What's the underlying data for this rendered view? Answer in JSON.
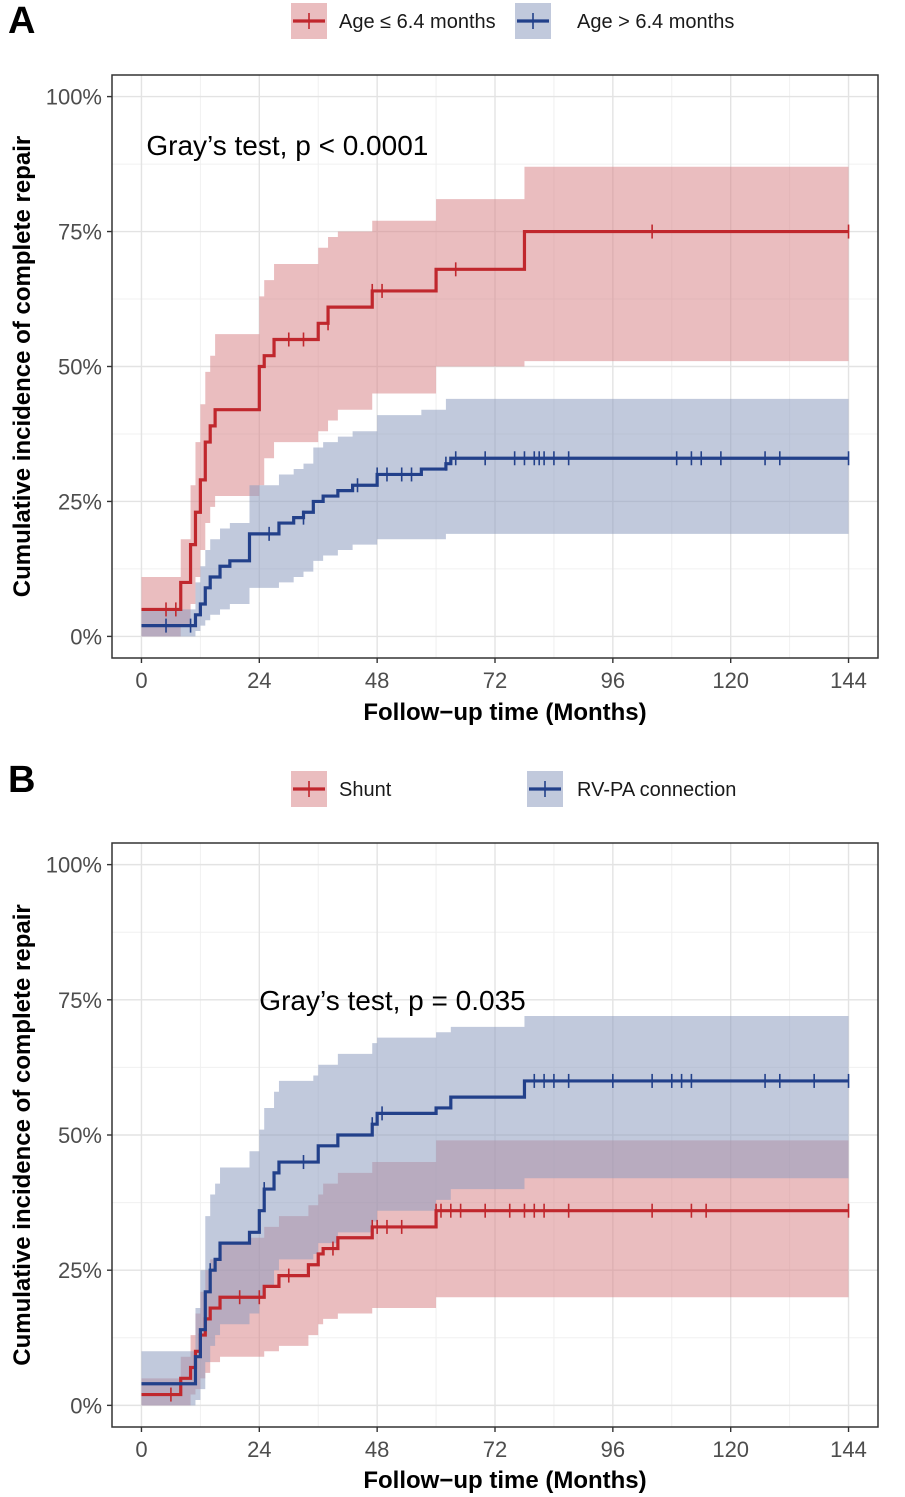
{
  "chart_data": [
    {
      "type": "line",
      "panel_label": "A",
      "title": "",
      "xlabel": "Follow−up time (Months)",
      "ylabel": "Cumulative incidence of complete repair",
      "xlim": [
        -6,
        150
      ],
      "ylim": [
        -0.04,
        1.04
      ],
      "xticks": [
        0,
        24,
        48,
        72,
        96,
        120,
        144
      ],
      "xtick_labels": [
        "0",
        "24",
        "48",
        "72",
        "96",
        "120",
        "144"
      ],
      "yticks": [
        0,
        0.25,
        0.5,
        0.75,
        1.0
      ],
      "ytick_labels": [
        "0%",
        "25%",
        "50%",
        "75%",
        "100%"
      ],
      "grid": true,
      "legend_position": "top",
      "annotation": {
        "text": "Gray’s test, p < 0.0001",
        "x": 1,
        "y": 0.91
      },
      "series": [
        {
          "name": "Age ≤ 6.4 months",
          "color": "#C0272D",
          "band_color": "#D9868B",
          "x": [
            0,
            8,
            10,
            11,
            12,
            13,
            14,
            15,
            24,
            25,
            27,
            36,
            38,
            40,
            47,
            60,
            63,
            78,
            144
          ],
          "y": [
            0.05,
            0.1,
            0.17,
            0.23,
            0.29,
            0.36,
            0.39,
            0.42,
            0.5,
            0.52,
            0.55,
            0.58,
            0.61,
            0.61,
            0.64,
            0.68,
            0.68,
            0.75,
            0.75
          ],
          "lower": [
            0.0,
            0.02,
            0.06,
            0.11,
            0.16,
            0.21,
            0.24,
            0.26,
            0.28,
            0.33,
            0.36,
            0.38,
            0.4,
            0.42,
            0.45,
            0.5,
            0.5,
            0.51,
            0.51
          ],
          "upper": [
            0.11,
            0.18,
            0.28,
            0.36,
            0.43,
            0.49,
            0.52,
            0.56,
            0.63,
            0.66,
            0.69,
            0.72,
            0.74,
            0.75,
            0.77,
            0.81,
            0.81,
            0.87,
            0.87
          ],
          "censor_x": [
            5,
            7,
            30,
            33,
            38,
            47,
            49,
            64,
            104,
            144
          ],
          "censor_y": [
            0.05,
            0.05,
            0.55,
            0.55,
            0.58,
            0.64,
            0.64,
            0.68,
            0.75,
            0.75
          ]
        },
        {
          "name": "Age > 6.4 months",
          "color": "#22408A",
          "band_color": "#8E9DC0",
          "x": [
            0,
            11,
            12,
            13,
            14,
            16,
            18,
            22,
            28,
            31,
            33,
            35,
            37,
            40,
            43,
            48,
            52,
            57,
            62,
            63,
            144
          ],
          "y": [
            0.02,
            0.04,
            0.06,
            0.09,
            0.11,
            0.13,
            0.14,
            0.19,
            0.21,
            0.22,
            0.23,
            0.25,
            0.26,
            0.27,
            0.28,
            0.3,
            0.3,
            0.31,
            0.32,
            0.33,
            0.33
          ],
          "lower": [
            0.0,
            0.01,
            0.02,
            0.03,
            0.04,
            0.05,
            0.06,
            0.09,
            0.1,
            0.11,
            0.12,
            0.14,
            0.15,
            0.16,
            0.17,
            0.18,
            0.18,
            0.18,
            0.19,
            0.19,
            0.19
          ],
          "upper": [
            0.05,
            0.1,
            0.13,
            0.16,
            0.18,
            0.2,
            0.21,
            0.28,
            0.3,
            0.31,
            0.32,
            0.35,
            0.36,
            0.37,
            0.38,
            0.41,
            0.41,
            0.42,
            0.44,
            0.44,
            0.44
          ],
          "censor_x": [
            5,
            10,
            26,
            33,
            44,
            48,
            50,
            53,
            55,
            62,
            64,
            70,
            76,
            78,
            80,
            81,
            82,
            84,
            87,
            109,
            112,
            114,
            118,
            127,
            130,
            144
          ],
          "censor_y": [
            0.02,
            0.02,
            0.19,
            0.22,
            0.28,
            0.3,
            0.3,
            0.3,
            0.3,
            0.32,
            0.33,
            0.33,
            0.33,
            0.33,
            0.33,
            0.33,
            0.33,
            0.33,
            0.33,
            0.33,
            0.33,
            0.33,
            0.33,
            0.33,
            0.33,
            0.33
          ]
        }
      ]
    },
    {
      "type": "line",
      "panel_label": "B",
      "title": "",
      "xlabel": "Follow−up time (Months)",
      "ylabel": "Cumulative incidence of complete repair",
      "xlim": [
        -6,
        150
      ],
      "ylim": [
        -0.04,
        1.04
      ],
      "xticks": [
        0,
        24,
        48,
        72,
        96,
        120,
        144
      ],
      "xtick_labels": [
        "0",
        "24",
        "48",
        "72",
        "96",
        "120",
        "144"
      ],
      "yticks": [
        0,
        0.25,
        0.5,
        0.75,
        1.0
      ],
      "ytick_labels": [
        "0%",
        "25%",
        "50%",
        "75%",
        "100%"
      ],
      "grid": true,
      "legend_position": "top",
      "annotation": {
        "text": "Gray’s test, p = 0.035",
        "x": 24,
        "y": 0.75
      },
      "series": [
        {
          "name": "Shunt",
          "color": "#C0272D",
          "band_color": "#D9868B",
          "x": [
            0,
            8,
            10,
            11,
            12,
            13,
            14,
            16,
            22,
            25,
            28,
            34,
            36,
            37,
            40,
            47,
            60,
            144
          ],
          "y": [
            0.02,
            0.05,
            0.07,
            0.1,
            0.13,
            0.16,
            0.18,
            0.2,
            0.2,
            0.22,
            0.24,
            0.26,
            0.28,
            0.29,
            0.31,
            0.33,
            0.36,
            0.36
          ],
          "lower": [
            0.0,
            0.0,
            0.02,
            0.03,
            0.05,
            0.06,
            0.08,
            0.09,
            0.09,
            0.1,
            0.11,
            0.13,
            0.15,
            0.16,
            0.17,
            0.18,
            0.2,
            0.2
          ],
          "upper": [
            0.05,
            0.09,
            0.13,
            0.17,
            0.21,
            0.25,
            0.27,
            0.3,
            0.31,
            0.33,
            0.35,
            0.37,
            0.39,
            0.41,
            0.43,
            0.45,
            0.49,
            0.49
          ],
          "censor_x": [
            6,
            20,
            24,
            30,
            39,
            47,
            48,
            50,
            53,
            60,
            61,
            63,
            65,
            70,
            75,
            78,
            80,
            82,
            87,
            104,
            112,
            115,
            144
          ],
          "censor_y": [
            0.02,
            0.2,
            0.2,
            0.24,
            0.29,
            0.33,
            0.33,
            0.33,
            0.33,
            0.36,
            0.36,
            0.36,
            0.36,
            0.36,
            0.36,
            0.36,
            0.36,
            0.36,
            0.36,
            0.36,
            0.36,
            0.36,
            0.36
          ]
        },
        {
          "name": "RV-PA connection",
          "color": "#22408A",
          "band_color": "#8E9DC0",
          "x": [
            0,
            11,
            12,
            13,
            14,
            15,
            16,
            22,
            24,
            25,
            27,
            28,
            35,
            36,
            40,
            47,
            48,
            60,
            63,
            78,
            144
          ],
          "y": [
            0.04,
            0.09,
            0.14,
            0.21,
            0.25,
            0.27,
            0.3,
            0.32,
            0.36,
            0.4,
            0.43,
            0.45,
            0.45,
            0.48,
            0.5,
            0.52,
            0.54,
            0.55,
            0.57,
            0.6,
            0.6
          ],
          "lower": [
            0.0,
            0.01,
            0.03,
            0.08,
            0.11,
            0.13,
            0.15,
            0.17,
            0.2,
            0.22,
            0.25,
            0.27,
            0.28,
            0.3,
            0.32,
            0.34,
            0.36,
            0.38,
            0.4,
            0.42,
            0.42
          ],
          "upper": [
            0.1,
            0.18,
            0.25,
            0.35,
            0.39,
            0.41,
            0.44,
            0.47,
            0.51,
            0.55,
            0.58,
            0.6,
            0.61,
            0.63,
            0.65,
            0.67,
            0.68,
            0.69,
            0.7,
            0.72,
            0.72
          ],
          "censor_x": [
            14,
            25,
            33,
            47,
            49,
            80,
            82,
            84,
            87,
            96,
            104,
            108,
            110,
            112,
            127,
            130,
            137,
            144
          ],
          "censor_y": [
            0.25,
            0.4,
            0.45,
            0.52,
            0.54,
            0.6,
            0.6,
            0.6,
            0.6,
            0.6,
            0.6,
            0.6,
            0.6,
            0.6,
            0.6,
            0.6,
            0.6,
            0.6
          ]
        }
      ]
    }
  ]
}
